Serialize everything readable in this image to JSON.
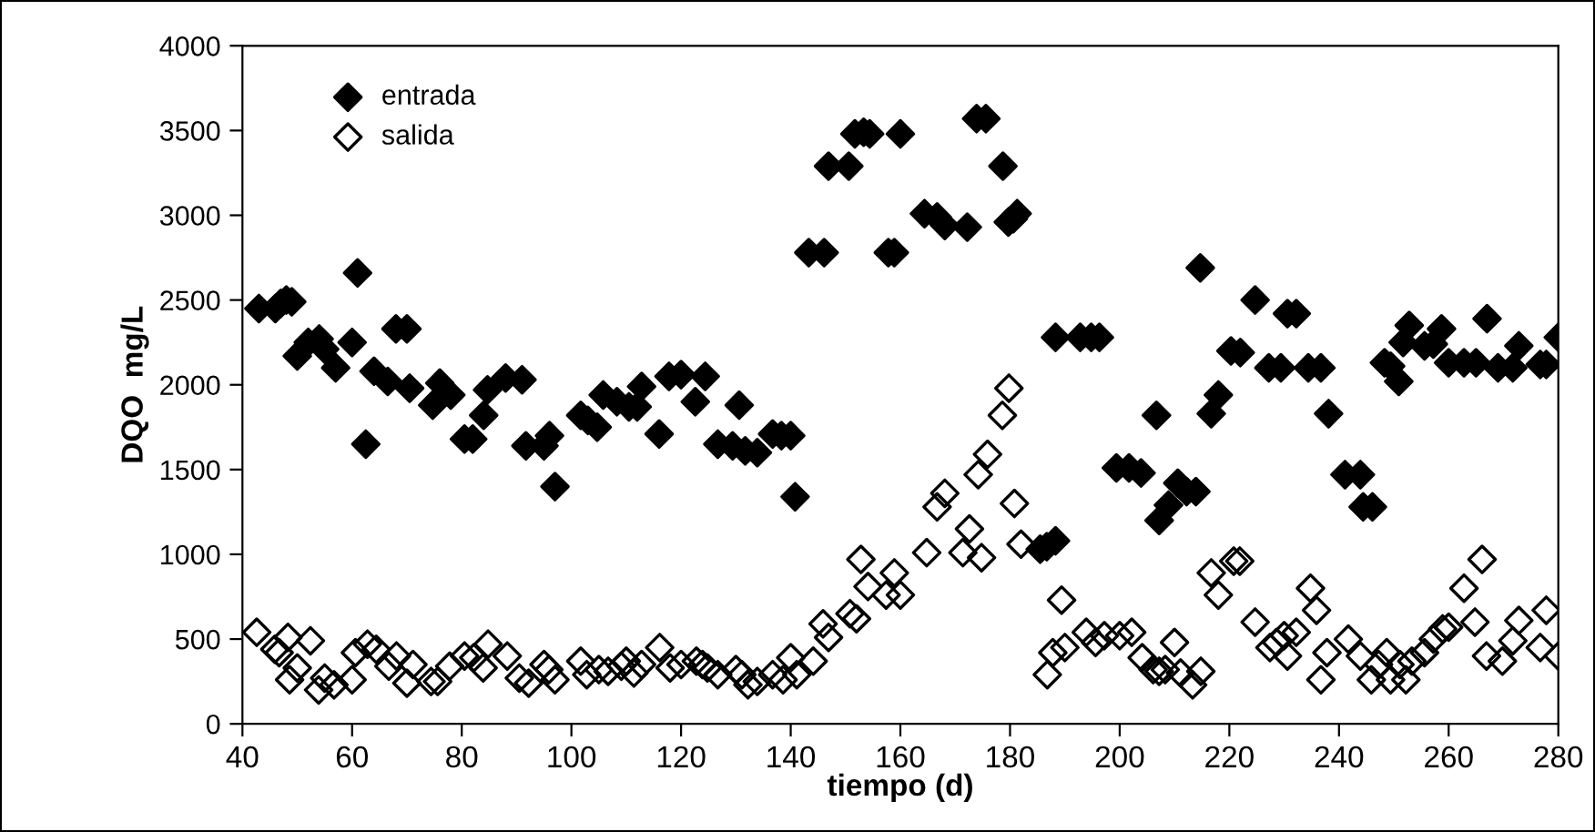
{
  "chart_data": {
    "type": "scatter",
    "xlabel": "tiempo (d)",
    "ylabel": "DQO  mg/L",
    "xlim": [
      40,
      280
    ],
    "xticks": [
      40,
      60,
      80,
      100,
      120,
      140,
      160,
      180,
      200,
      220,
      240,
      260,
      280
    ],
    "ylim": [
      0,
      4000
    ],
    "yticks": [
      0,
      500,
      1000,
      1500,
      2000,
      2500,
      3000,
      3500,
      4000
    ],
    "grid": false,
    "legend": "top left",
    "series": [
      {
        "name": "entrada",
        "color": "#000000",
        "marker": "diamond",
        "x": [
          43,
          46,
          47,
          48,
          49,
          50,
          52,
          54,
          55,
          57,
          60,
          61,
          62.5,
          64,
          66.5,
          68,
          70,
          70.5,
          74.7,
          76,
          78,
          80.5,
          82,
          84,
          84.7,
          88,
          91,
          91.7,
          95,
          96,
          97,
          101.7,
          103,
          104.7,
          105.8,
          108.3,
          110.5,
          112,
          112.8,
          116,
          117.8,
          120,
          122.6,
          124.4,
          126.7,
          129.4,
          130.6,
          131.7,
          133.9,
          136.7,
          138.3,
          140,
          140.8,
          143.3,
          146.1,
          146.9,
          150.6,
          151.7,
          153.3,
          154.4,
          157.8,
          158.9,
          160,
          164.4,
          166.7,
          168.1,
          172.2,
          173.9,
          175.6,
          178.7,
          179.7,
          180.6,
          181.3,
          185.5,
          186.7,
          188.3,
          188.3,
          192.8,
          194.8,
          196.3,
          199.4,
          201.7,
          203.9,
          206.7,
          207.2,
          208.9,
          210.6,
          212.2,
          213.9,
          214.7,
          216.7,
          218,
          220.3,
          222,
          224.7,
          227.2,
          229.4,
          230.6,
          232.2,
          234.4,
          236.7,
          238.1,
          241.1,
          243.9,
          244.4,
          246.1,
          248.3,
          249.4,
          250.9,
          251.7,
          252.8,
          255.6,
          257.2,
          258.7,
          260,
          262.8,
          265,
          267,
          269,
          271.7,
          272.8,
          276.7,
          277.8,
          280
        ],
        "values": [
          2450,
          2450,
          2480,
          2500,
          2490,
          2170,
          2250,
          2270,
          2210,
          2100,
          2250,
          2660,
          1650,
          2080,
          2020,
          2330,
          2330,
          1980,
          1880,
          2010,
          1940,
          1680,
          1680,
          1820,
          1970,
          2040,
          2030,
          1640,
          1640,
          1700,
          1400,
          1820,
          1790,
          1750,
          1940,
          1900,
          1870,
          1870,
          1990,
          1710,
          2050,
          2060,
          1900,
          2050,
          1650,
          1640,
          1880,
          1610,
          1600,
          1710,
          1700,
          1700,
          1340,
          2780,
          2780,
          3290,
          3290,
          3480,
          3490,
          3480,
          2780,
          2780,
          3480,
          3010,
          2990,
          2940,
          2930,
          3570,
          3570,
          3290,
          2960,
          2980,
          3010,
          1030,
          1045,
          1080,
          2280,
          2280,
          2280,
          2280,
          1510,
          1510,
          1480,
          1820,
          1200,
          1290,
          1420,
          1370,
          1370,
          2690,
          1830,
          1940,
          2200,
          2190,
          2500,
          2100,
          2100,
          2420,
          2420,
          2100,
          2100,
          1830,
          1470,
          1470,
          1280,
          1280,
          2130,
          2110,
          2020,
          2250,
          2350,
          2230,
          2240,
          2330,
          2130,
          2130,
          2130,
          2390,
          2100,
          2100,
          2230,
          2120,
          2120,
          2280
        ]
      },
      {
        "name": "salida",
        "color": "#000000",
        "marker": "diamond",
        "x": [
          42.6,
          45.9,
          46.7,
          48.3,
          48.6,
          50,
          52.4,
          53.9,
          55,
          56.7,
          60,
          60.6,
          62.8,
          64.4,
          66.7,
          68.1,
          70,
          71.1,
          74.4,
          75.6,
          77.8,
          80.5,
          82.2,
          83.9,
          84.8,
          88.3,
          90.5,
          92.2,
          95,
          95.9,
          97,
          101.7,
          102.8,
          105,
          106.7,
          109.1,
          110,
          111.4,
          112.8,
          116.1,
          118,
          120,
          122.8,
          123.9,
          124.8,
          126.7,
          130,
          131.1,
          132.2,
          133.9,
          136.7,
          138.6,
          140,
          141.1,
          144.1,
          145.9,
          146.9,
          150.8,
          152,
          152.8,
          154.1,
          157.4,
          158.9,
          160,
          164.8,
          166.7,
          168.1,
          171.4,
          172.6,
          174.8,
          174.2,
          175.9,
          178.6,
          179.8,
          180.8,
          182,
          186.8,
          187.8,
          189.4,
          190,
          193.9,
          195.6,
          197.2,
          200,
          202.2,
          204.1,
          206.1,
          207.2,
          208.3,
          210,
          211.1,
          213.3,
          214.8,
          216.7,
          218,
          220.8,
          221.9,
          224.7,
          227.4,
          228.6,
          230,
          230.6,
          232.2,
          234.8,
          235.9,
          237.8,
          236.7,
          241.7,
          243.9,
          245.9,
          247.2,
          248.7,
          249.4,
          251.1,
          252.2,
          253.3,
          255.6,
          257.2,
          258.9,
          260,
          262.8,
          264.8,
          266.1,
          266.9,
          269.8,
          271.7,
          272.8,
          276.7,
          277.8,
          280
        ],
        "values": [
          540,
          440,
          420,
          510,
          260,
          330,
          490,
          200,
          270,
          230,
          260,
          420,
          470,
          440,
          340,
          400,
          240,
          350,
          250,
          250,
          340,
          400,
          390,
          330,
          470,
          400,
          270,
          240,
          350,
          320,
          260,
          370,
          290,
          320,
          310,
          340,
          370,
          300,
          350,
          450,
          330,
          350,
          370,
          350,
          330,
          290,
          320,
          290,
          230,
          250,
          290,
          260,
          390,
          290,
          370,
          590,
          510,
          650,
          620,
          970,
          810,
          760,
          890,
          760,
          1010,
          1280,
          1360,
          1010,
          1150,
          980,
          1470,
          1590,
          1820,
          1980,
          1300,
          1060,
          290,
          420,
          730,
          450,
          540,
          480,
          520,
          520,
          540,
          390,
          320,
          310,
          320,
          480,
          300,
          230,
          310,
          890,
          760,
          960,
          960,
          600,
          450,
          480,
          520,
          400,
          540,
          800,
          670,
          420,
          260,
          500,
          400,
          260,
          350,
          420,
          260,
          350,
          260,
          370,
          420,
          500,
          560,
          570,
          800,
          600,
          970,
          400,
          370,
          490,
          610,
          450,
          670,
          400
        ]
      }
    ]
  }
}
